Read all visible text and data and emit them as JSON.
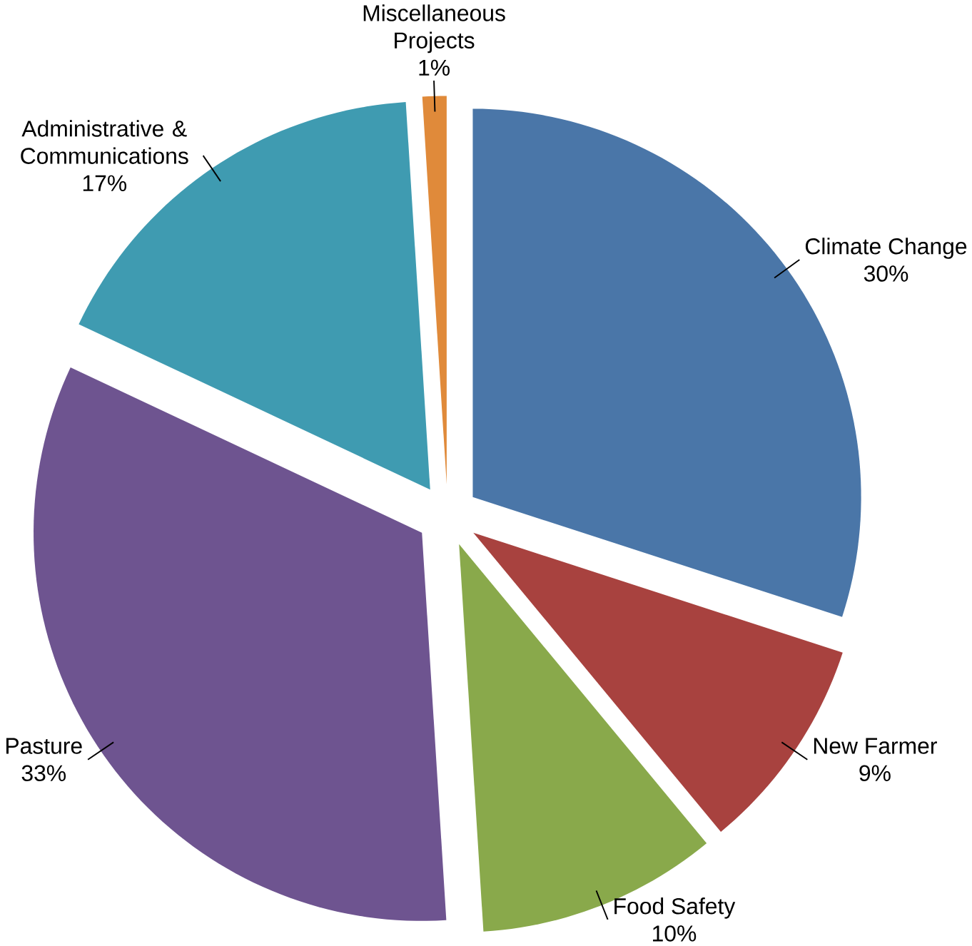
{
  "chart_data": {
    "type": "pie",
    "categories": [
      "Climate Change",
      "New Farmer",
      "Food Safety",
      "Pasture",
      "Administrative & Communications",
      "Miscellaneous Projects"
    ],
    "values": [
      30,
      9,
      10,
      33,
      17,
      1
    ],
    "value_labels": [
      "30%",
      "9%",
      "10%",
      "33%",
      "17%",
      "1%"
    ],
    "colors": [
      "#4a76a8",
      "#a8423f",
      "#89a94b",
      "#6e5490",
      "#3f9bb1",
      "#e08a3a"
    ]
  }
}
